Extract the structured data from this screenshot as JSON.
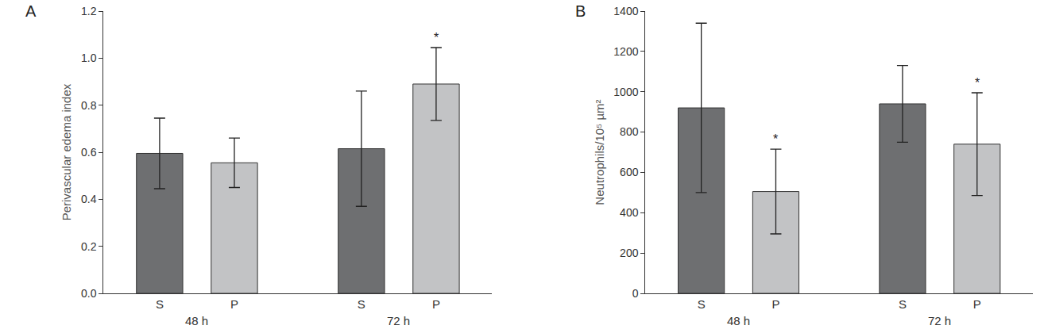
{
  "chart_data": [
    {
      "type": "bar",
      "title": "A",
      "ylabel": "Perivascular edema index",
      "categories": [
        "S",
        "P",
        "S",
        "P"
      ],
      "groups": [
        "48 h",
        "48 h",
        "72 h",
        "72 h"
      ],
      "values": [
        0.595,
        0.555,
        0.615,
        0.89
      ],
      "errors": [
        0.15,
        0.105,
        0.245,
        0.155
      ],
      "colors": [
        "#6e6f71",
        "#c2c3c5",
        "#6e6f71",
        "#c2c3c5"
      ],
      "ylim": [
        0,
        1.2
      ],
      "yticks": [
        {
          "value": 0,
          "label": "0.0"
        },
        0.2,
        0.4,
        0.6,
        0.8,
        {
          "value": 1,
          "label": "1.0"
        },
        1.2
      ],
      "annotations": [
        {
          "index": 3,
          "text": "*"
        }
      ]
    },
    {
      "type": "bar",
      "title": "B",
      "ylabel": "Neutrophils/10⁵ µm²",
      "categories": [
        "S",
        "P",
        "S",
        "P"
      ],
      "groups": [
        "48 h",
        "48 h",
        "72 h",
        "72 h"
      ],
      "values": [
        920,
        505,
        940,
        740
      ],
      "errors": [
        420,
        210,
        190,
        255
      ],
      "colors": [
        "#6e6f71",
        "#c2c3c5",
        "#6e6f71",
        "#c2c3c5"
      ],
      "ylim": [
        0,
        1400
      ],
      "yticks": [
        0,
        200,
        400,
        600,
        800,
        1000,
        1200,
        1400
      ],
      "annotations": [
        {
          "index": 1,
          "text": "*"
        },
        {
          "index": 3,
          "text": "*"
        }
      ]
    }
  ]
}
